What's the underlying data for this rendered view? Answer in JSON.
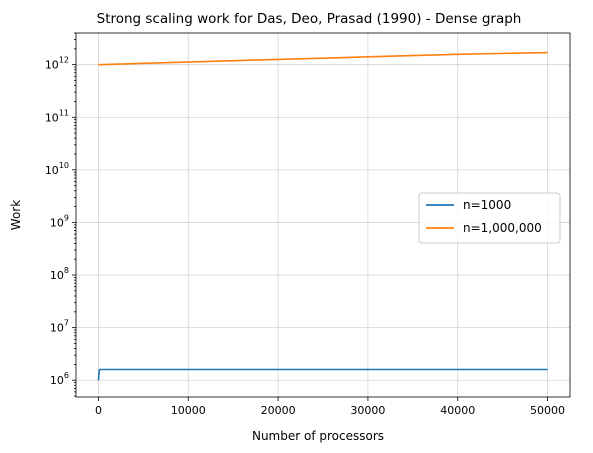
{
  "chart_data": {
    "type": "line",
    "title": "Strong scaling work for Das, Deo, Prasad  (1990) - Dense graph",
    "xlabel": "Number of processors",
    "ylabel": "Work",
    "yscale": "log",
    "xlim": [
      -2500,
      52500
    ],
    "ylim": [
      480000,
      4000000000000
    ],
    "grid": true,
    "legend_placement": "center-right",
    "x_ticks": [
      0,
      10000,
      20000,
      30000,
      40000,
      50000
    ],
    "x_tick_labels": [
      "0",
      "10000",
      "20000",
      "30000",
      "40000",
      "50000"
    ],
    "y_ticks": [
      6,
      7,
      8,
      9,
      10,
      11,
      12
    ],
    "y_tick_labels": [
      "6",
      "7",
      "8",
      "9",
      "10",
      "11",
      "12"
    ],
    "series": [
      {
        "name": "n=1000",
        "color": "#1f77b4",
        "x": [
          1,
          100,
          200,
          1000,
          10000,
          20000,
          30000,
          40000,
          50000
        ],
        "y": [
          1000000,
          1600000,
          1600000,
          1600000,
          1600000,
          1600000,
          1600000,
          1600000,
          1600000
        ]
      },
      {
        "name": "n=1,000,000",
        "color": "#ff7f0e",
        "x": [
          1,
          5000,
          10000,
          15000,
          20000,
          25000,
          30000,
          35000,
          40000,
          45000,
          50000
        ],
        "y": [
          1000000000000,
          1060000000000,
          1120000000000,
          1190000000000,
          1260000000000,
          1330000000000,
          1410000000000,
          1490000000000,
          1570000000000,
          1640000000000,
          1700000000000
        ]
      }
    ]
  }
}
